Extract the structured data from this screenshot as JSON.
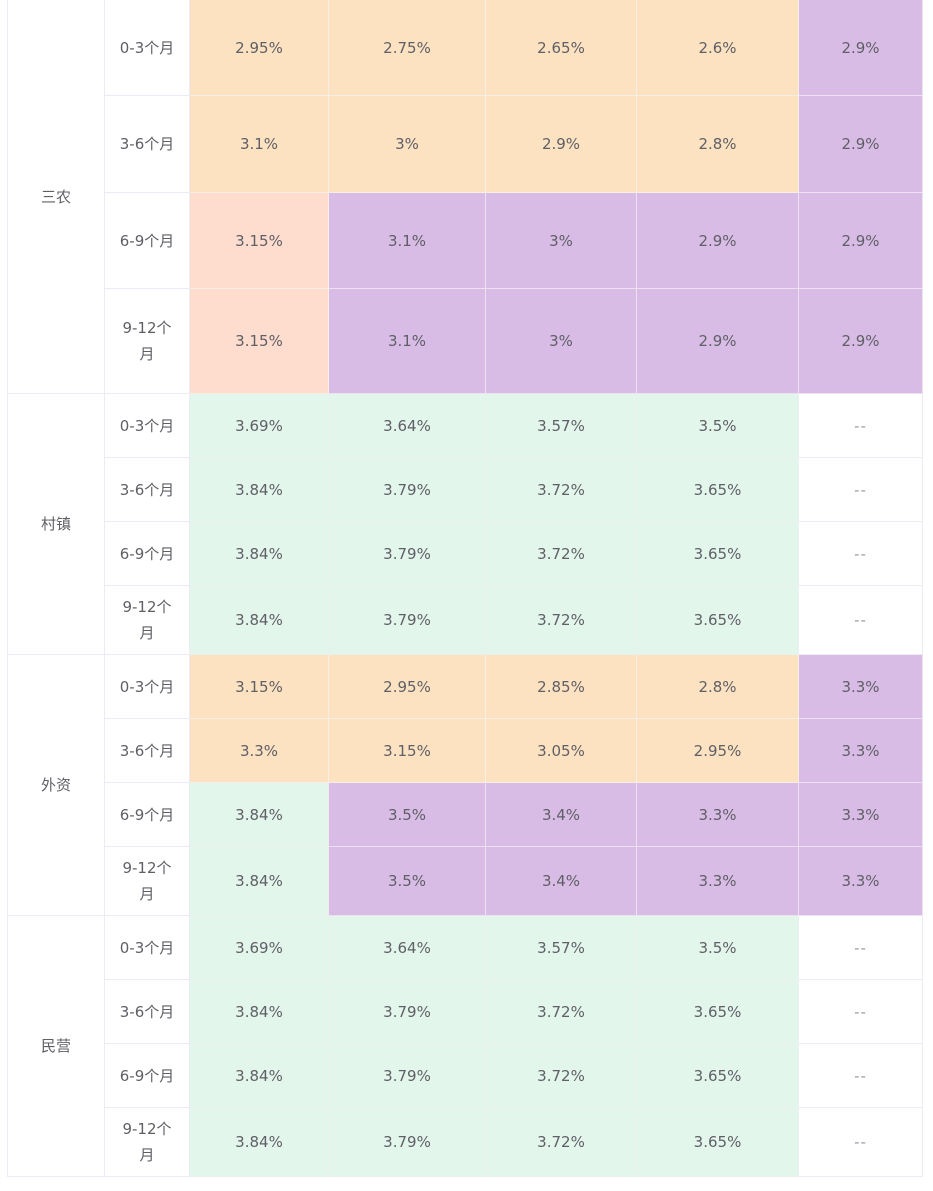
{
  "colors": {
    "orange": "#fce2c0",
    "salmon": "#fedcce",
    "purple": "#d9bce6",
    "green": "#e3f6ec",
    "grid": "#ebeaf5",
    "text": "#5f5f66"
  },
  "groups": [
    {
      "name": "三农",
      "rows": [
        {
          "term": "0-3个月",
          "height": 96,
          "cells": [
            {
              "v": "2.95%",
              "c": "orange"
            },
            {
              "v": "2.75%",
              "c": "orange"
            },
            {
              "v": "2.65%",
              "c": "orange"
            },
            {
              "v": "2.6%",
              "c": "orange"
            },
            {
              "v": "2.9%",
              "c": "purple"
            }
          ]
        },
        {
          "term": "3-6个月",
          "height": 97,
          "cells": [
            {
              "v": "3.1%",
              "c": "orange"
            },
            {
              "v": "3%",
              "c": "orange"
            },
            {
              "v": "2.9%",
              "c": "orange"
            },
            {
              "v": "2.8%",
              "c": "orange"
            },
            {
              "v": "2.9%",
              "c": "purple"
            }
          ]
        },
        {
          "term": "6-9个月",
          "height": 96,
          "cells": [
            {
              "v": "3.15%",
              "c": "salmon"
            },
            {
              "v": "3.1%",
              "c": "purple"
            },
            {
              "v": "3%",
              "c": "purple"
            },
            {
              "v": "2.9%",
              "c": "purple"
            },
            {
              "v": "2.9%",
              "c": "purple"
            }
          ]
        },
        {
          "term": "9-12个月",
          "height": 105,
          "cells": [
            {
              "v": "3.15%",
              "c": "salmon"
            },
            {
              "v": "3.1%",
              "c": "purple"
            },
            {
              "v": "3%",
              "c": "purple"
            },
            {
              "v": "2.9%",
              "c": "purple"
            },
            {
              "v": "2.9%",
              "c": "purple"
            }
          ]
        }
      ]
    },
    {
      "name": "村镇",
      "rows": [
        {
          "term": "0-3个月",
          "height": 64,
          "cells": [
            {
              "v": "3.69%",
              "c": "green"
            },
            {
              "v": "3.64%",
              "c": "green"
            },
            {
              "v": "3.57%",
              "c": "green"
            },
            {
              "v": "3.5%",
              "c": "green"
            },
            {
              "v": "--",
              "c": "white"
            }
          ]
        },
        {
          "term": "3-6个月",
          "height": 64,
          "cells": [
            {
              "v": "3.84%",
              "c": "green"
            },
            {
              "v": "3.79%",
              "c": "green"
            },
            {
              "v": "3.72%",
              "c": "green"
            },
            {
              "v": "3.65%",
              "c": "green"
            },
            {
              "v": "--",
              "c": "white"
            }
          ]
        },
        {
          "term": "6-9个月",
          "height": 64,
          "cells": [
            {
              "v": "3.84%",
              "c": "green"
            },
            {
              "v": "3.79%",
              "c": "green"
            },
            {
              "v": "3.72%",
              "c": "green"
            },
            {
              "v": "3.65%",
              "c": "green"
            },
            {
              "v": "--",
              "c": "white"
            }
          ]
        },
        {
          "term": "9-12个月",
          "height": 69,
          "cells": [
            {
              "v": "3.84%",
              "c": "green"
            },
            {
              "v": "3.79%",
              "c": "green"
            },
            {
              "v": "3.72%",
              "c": "green"
            },
            {
              "v": "3.65%",
              "c": "green"
            },
            {
              "v": "--",
              "c": "white"
            }
          ]
        }
      ]
    },
    {
      "name": "外资",
      "rows": [
        {
          "term": "0-3个月",
          "height": 64,
          "cells": [
            {
              "v": "3.15%",
              "c": "orange"
            },
            {
              "v": "2.95%",
              "c": "orange"
            },
            {
              "v": "2.85%",
              "c": "orange"
            },
            {
              "v": "2.8%",
              "c": "orange"
            },
            {
              "v": "3.3%",
              "c": "purple"
            }
          ]
        },
        {
          "term": "3-6个月",
          "height": 64,
          "cells": [
            {
              "v": "3.3%",
              "c": "orange"
            },
            {
              "v": "3.15%",
              "c": "orange"
            },
            {
              "v": "3.05%",
              "c": "orange"
            },
            {
              "v": "2.95%",
              "c": "orange"
            },
            {
              "v": "3.3%",
              "c": "purple"
            }
          ]
        },
        {
          "term": "6-9个月",
          "height": 64,
          "cells": [
            {
              "v": "3.84%",
              "c": "green"
            },
            {
              "v": "3.5%",
              "c": "purple"
            },
            {
              "v": "3.4%",
              "c": "purple"
            },
            {
              "v": "3.3%",
              "c": "purple"
            },
            {
              "v": "3.3%",
              "c": "purple"
            }
          ]
        },
        {
          "term": "9-12个月",
          "height": 69,
          "cells": [
            {
              "v": "3.84%",
              "c": "green"
            },
            {
              "v": "3.5%",
              "c": "purple"
            },
            {
              "v": "3.4%",
              "c": "purple"
            },
            {
              "v": "3.3%",
              "c": "purple"
            },
            {
              "v": "3.3%",
              "c": "purple"
            }
          ]
        }
      ]
    },
    {
      "name": "民营",
      "rows": [
        {
          "term": "0-3个月",
          "height": 64,
          "cells": [
            {
              "v": "3.69%",
              "c": "green"
            },
            {
              "v": "3.64%",
              "c": "green"
            },
            {
              "v": "3.57%",
              "c": "green"
            },
            {
              "v": "3.5%",
              "c": "green"
            },
            {
              "v": "--",
              "c": "white"
            }
          ]
        },
        {
          "term": "3-6个月",
          "height": 64,
          "cells": [
            {
              "v": "3.84%",
              "c": "green"
            },
            {
              "v": "3.79%",
              "c": "green"
            },
            {
              "v": "3.72%",
              "c": "green"
            },
            {
              "v": "3.65%",
              "c": "green"
            },
            {
              "v": "--",
              "c": "white"
            }
          ]
        },
        {
          "term": "6-9个月",
          "height": 64,
          "cells": [
            {
              "v": "3.84%",
              "c": "green"
            },
            {
              "v": "3.79%",
              "c": "green"
            },
            {
              "v": "3.72%",
              "c": "green"
            },
            {
              "v": "3.65%",
              "c": "green"
            },
            {
              "v": "--",
              "c": "white"
            }
          ]
        },
        {
          "term": "9-12个月",
          "height": 69,
          "cells": [
            {
              "v": "3.84%",
              "c": "green"
            },
            {
              "v": "3.79%",
              "c": "green"
            },
            {
              "v": "3.72%",
              "c": "green"
            },
            {
              "v": "3.65%",
              "c": "green"
            },
            {
              "v": "--",
              "c": "white"
            }
          ]
        }
      ]
    }
  ]
}
